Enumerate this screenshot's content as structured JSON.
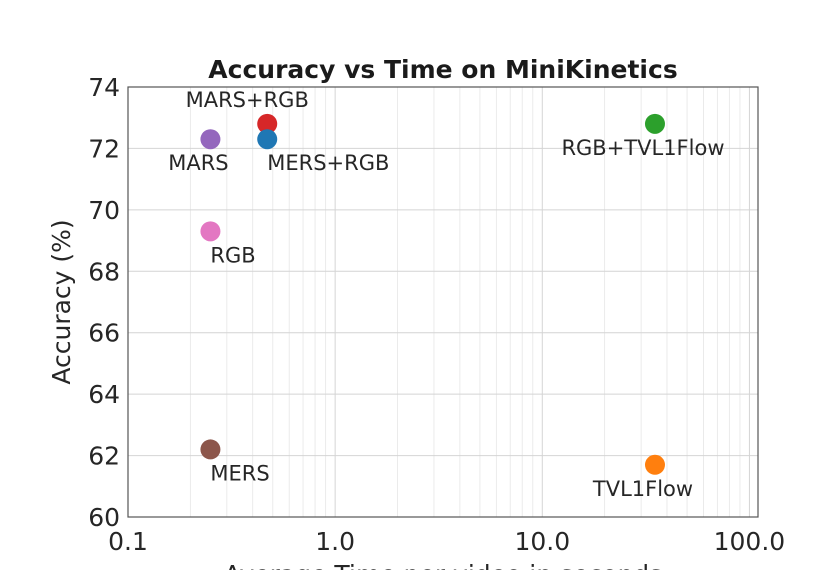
{
  "chart_data": {
    "type": "scatter",
    "title": "Accuracy vs Time on MiniKinetics",
    "xlabel": "Average Time per video in seconds",
    "ylabel": "Accuracy (%)",
    "xscale": "log",
    "xlim": [
      0.1,
      110
    ],
    "ylim": [
      60,
      74
    ],
    "x_ticks": [
      "0.1",
      "1.0",
      "10.0",
      "100.0"
    ],
    "x_tick_values": [
      0.1,
      1,
      10,
      100
    ],
    "y_ticks": [
      "60",
      "62",
      "64",
      "66",
      "68",
      "70",
      "72",
      "74"
    ],
    "y_tick_values": [
      60,
      62,
      64,
      66,
      68,
      70,
      72,
      74
    ],
    "grid": true,
    "points": [
      {
        "label": "MARS+RGB",
        "x": 0.47,
        "y": 72.8,
        "color": "#d62728",
        "label_pos": "above"
      },
      {
        "label": "MARS",
        "x": 0.25,
        "y": 72.3,
        "color": "#9467bd",
        "label_pos": "below"
      },
      {
        "label": "MERS+RGB",
        "x": 0.47,
        "y": 72.3,
        "color": "#1f77b4",
        "label_pos": "below-right"
      },
      {
        "label": "RGB",
        "x": 0.25,
        "y": 69.3,
        "color": "#e377c2",
        "label_pos": "below-right"
      },
      {
        "label": "MERS",
        "x": 0.25,
        "y": 62.2,
        "color": "#8c564b",
        "label_pos": "below-right"
      },
      {
        "label": "RGB+TVL1Flow",
        "x": 35,
        "y": 72.8,
        "color": "#2ca02c",
        "label_pos": "below"
      },
      {
        "label": "TVL1Flow",
        "x": 35,
        "y": 61.7,
        "color": "#ff7f0e",
        "label_pos": "below"
      }
    ]
  }
}
